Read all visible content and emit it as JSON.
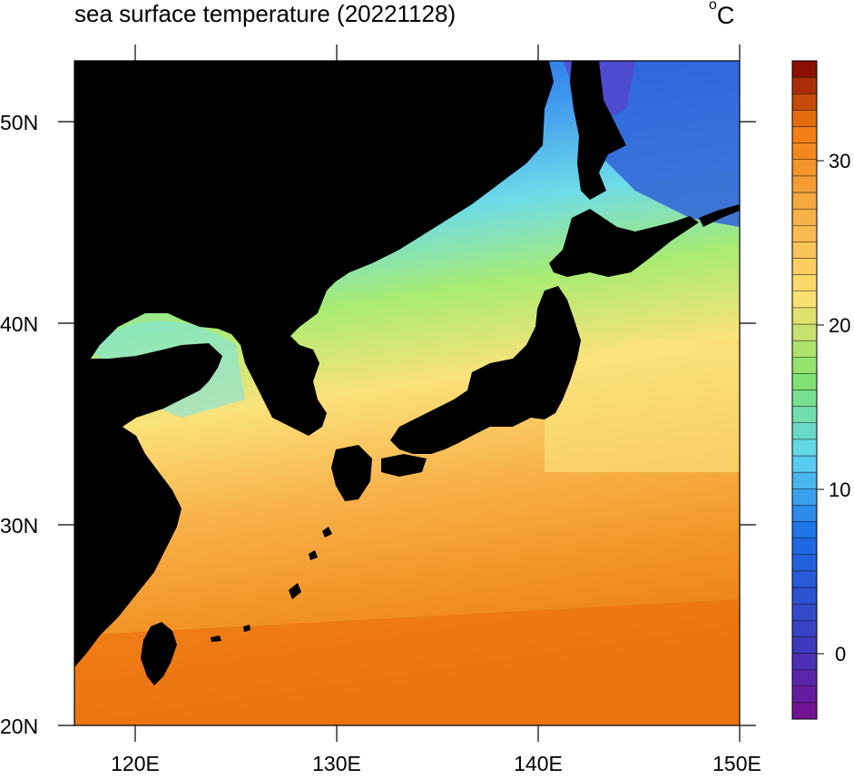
{
  "title": "sea surface temperature (20221128)",
  "unit": {
    "degree": "o",
    "letter": "C"
  },
  "lat_labels": [
    "50N",
    "40N",
    "30N",
    "20N"
  ],
  "lon_labels": [
    "120E",
    "130E",
    "140E",
    "150E"
  ],
  "colorbar": {
    "tick_labels": [
      "30",
      "20",
      "10",
      "0"
    ],
    "min": -4,
    "max": 36,
    "step": 1,
    "colors": {
      "cold": "#7a0d8f",
      "blue": "#1a6fe6",
      "cyan": "#5fd6f2",
      "green": "#82e36b",
      "yellow": "#fde071",
      "orange": "#f07a0f",
      "hot": "#7e0002"
    }
  },
  "colors": {
    "land": "#000000",
    "frame": "#000000"
  }
}
